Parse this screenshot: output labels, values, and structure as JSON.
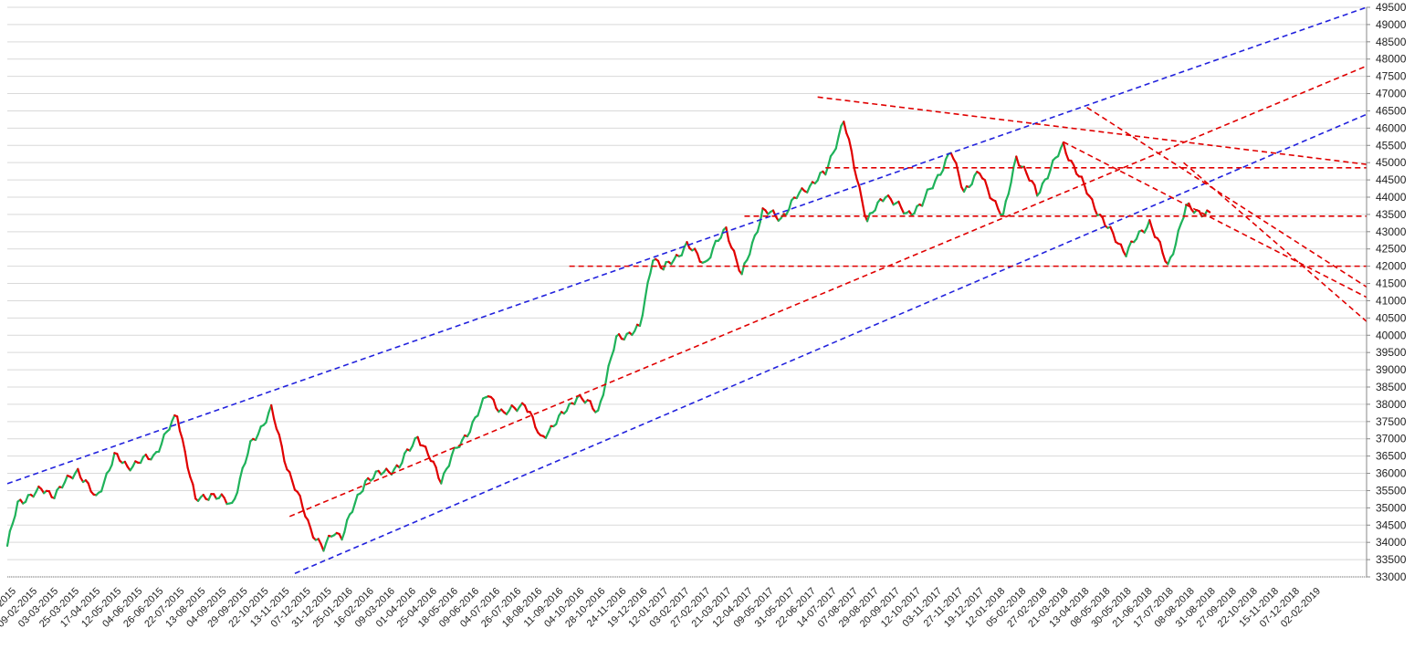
{
  "chart_data": {
    "type": "line",
    "style": "candlestick-like price line, green rising segments and red falling segments",
    "title": "",
    "xlabel": "",
    "ylabel": "",
    "grid": true,
    "legend": "none",
    "y_axis_position": "right",
    "ylim": [
      33000,
      49500
    ],
    "y_ticks": [
      33000,
      33500,
      34000,
      34500,
      35000,
      35500,
      36000,
      36500,
      37000,
      37500,
      38000,
      38500,
      39000,
      39500,
      40000,
      40500,
      41000,
      41500,
      42000,
      42500,
      43000,
      43500,
      44000,
      44500,
      45000,
      45500,
      46000,
      46500,
      47000,
      47500,
      48000,
      48500,
      49000,
      49500
    ],
    "x_tick_labels": [
      "-2015",
      "09-02-2015",
      "03-03-2015",
      "25-03-2015",
      "17-04-2015",
      "12-05-2015",
      "04-06-2015",
      "26-06-2015",
      "22-07-2015",
      "13-08-2015",
      "04-09-2015",
      "29-09-2015",
      "22-10-2015",
      "13-11-2015",
      "07-12-2015",
      "31-12-2015",
      "25-01-2016",
      "16-02-2016",
      "09-03-2016",
      "01-04-2016",
      "25-04-2016",
      "18-05-2016",
      "09-06-2016",
      "04-07-2016",
      "26-07-2016",
      "18-08-2016",
      "11-09-2016",
      "04-10-2016",
      "28-10-2016",
      "24-11-2016",
      "19-12-2016",
      "12-01-2017",
      "03-02-2017",
      "27-02-2017",
      "21-03-2017",
      "12-04-2017",
      "09-05-2017",
      "31-05-2017",
      "22-06-2017",
      "14-07-2017",
      "07-08-2017",
      "29-08-2017",
      "20-09-2017",
      "12-10-2017",
      "03-11-2017",
      "27-11-2017",
      "19-12-2017",
      "12-01-2018",
      "05-02-2018",
      "27-02-2018",
      "21-03-2018",
      "13-04-2018",
      "08-05-2018",
      "30-05-2018",
      "21-06-2018",
      "17-07-2018",
      "08-08-2018",
      "31-08-2018",
      "27-09-2018",
      "22-10-2018",
      "15-11-2018",
      "07-12-2018",
      "02-02-2019"
    ],
    "series": [
      {
        "role": "price",
        "x_index": [
          0,
          1,
          2,
          3,
          4,
          5,
          6,
          7,
          8,
          9,
          10,
          11,
          12,
          13,
          14,
          15,
          16,
          17,
          18,
          19,
          20,
          21,
          22,
          23,
          24,
          25,
          26,
          27,
          28,
          29,
          30,
          31,
          32,
          33,
          34,
          35,
          36,
          37,
          38,
          39,
          40,
          41,
          42,
          43,
          44,
          45,
          46,
          47,
          48,
          49,
          50,
          51,
          52,
          53,
          54,
          55,
          56,
          57,
          58,
          59,
          60,
          61,
          62,
          63,
          64,
          65,
          66,
          67,
          68,
          69,
          70,
          71,
          72,
          73,
          74,
          75,
          76,
          77,
          78,
          79,
          80,
          81,
          82,
          83,
          84,
          85,
          86,
          87,
          88,
          89,
          90,
          91,
          92,
          93,
          94,
          95,
          96,
          97,
          98,
          99,
          100,
          101,
          102,
          103,
          104,
          105,
          106,
          107,
          108,
          109,
          110,
          111,
          112,
          113,
          114,
          115,
          116,
          117,
          118,
          119,
          120,
          121,
          122,
          123,
          124,
          125,
          126,
          127,
          128,
          129,
          130,
          131,
          132,
          133,
          134,
          135,
          136,
          137,
          138,
          139,
          140,
          141,
          142,
          143,
          144,
          145,
          146,
          147,
          148,
          149,
          150,
          151,
          152,
          153,
          154,
          155,
          156,
          157,
          158,
          159,
          160,
          161,
          162,
          163,
          164,
          165,
          166,
          167,
          168,
          169,
          170,
          171,
          172,
          173,
          174,
          175,
          176,
          177,
          178,
          179,
          180,
          181,
          182,
          183,
          184,
          185,
          186,
          187,
          188,
          189,
          190,
          191,
          192,
          193,
          194,
          195,
          196,
          197,
          198,
          199,
          200,
          201,
          202,
          203,
          204,
          205,
          206,
          207,
          208,
          209,
          210,
          211,
          212,
          213,
          214,
          215,
          216,
          217,
          218,
          219,
          220,
          221,
          222,
          223,
          224,
          225,
          226,
          227,
          228,
          229,
          230,
          231,
          232,
          233,
          234,
          235,
          236,
          237,
          238,
          239,
          240,
          241,
          242,
          243,
          244,
          245,
          246,
          247,
          248,
          249,
          250,
          251,
          252,
          253,
          254,
          255,
          256,
          257,
          258,
          259,
          260,
          261,
          262,
          263,
          264,
          265,
          266,
          267,
          268,
          269,
          270,
          271,
          272,
          273,
          274,
          275,
          276,
          277,
          278,
          279,
          280,
          281,
          282,
          283,
          284,
          285,
          286,
          287,
          288,
          289,
          290,
          291,
          292,
          293,
          294,
          295,
          296,
          297,
          298,
          299,
          300,
          301,
          302,
          303,
          304,
          305,
          306,
          307,
          308,
          309,
          310,
          311,
          312,
          313,
          314,
          315,
          316,
          317,
          318,
          319,
          320,
          321,
          322,
          323,
          324,
          325,
          326,
          327,
          328,
          329,
          330,
          331,
          332,
          333,
          334,
          335,
          336,
          337,
          338,
          339,
          340,
          341,
          342,
          343,
          344,
          345,
          346,
          347,
          348,
          349,
          350,
          351,
          352,
          353,
          354,
          355,
          356,
          357,
          358,
          359,
          360,
          361,
          362,
          363,
          364,
          365,
          366,
          367,
          368,
          369,
          370,
          371,
          372,
          373,
          374,
          375,
          376,
          377,
          378,
          379,
          380,
          381,
          382,
          383,
          384,
          385,
          386,
          387,
          388,
          389,
          390,
          391,
          392,
          393,
          394,
          395,
          396,
          397,
          398,
          399,
          400,
          401,
          402,
          403,
          404,
          405,
          406,
          407,
          408,
          409,
          410,
          411,
          412,
          413,
          414,
          415,
          416,
          417,
          418,
          419,
          420,
          421,
          422,
          423,
          424,
          425,
          426,
          427,
          428,
          429,
          430,
          431,
          432,
          433,
          434,
          435,
          436,
          437,
          438,
          439,
          440,
          441,
          442,
          443,
          444,
          445,
          446,
          447,
          448,
          449,
          450,
          451,
          452,
          453,
          454,
          455,
          456,
          457,
          458,
          459,
          460,
          461,
          462,
          463,
          464,
          465,
          466,
          467,
          468,
          469,
          470,
          471,
          472,
          473,
          474,
          475,
          476,
          477,
          478,
          479,
          480,
          481,
          482,
          483,
          484,
          485,
          486,
          487,
          488,
          489,
          490,
          491,
          492,
          493,
          494,
          495,
          496,
          497,
          498,
          499,
          500,
          501,
          502,
          503,
          504,
          505,
          506,
          507,
          508,
          509,
          510,
          511,
          512,
          513,
          514,
          515,
          516,
          517,
          518,
          519,
          520
        ],
        "anchors_x": [
          0,
          4,
          8,
          13,
          18,
          27,
          34,
          41,
          46,
          56,
          65,
          72,
          78,
          86,
          93,
          101,
          107,
          116,
          121,
          125,
          128,
          137,
          143,
          150,
          157,
          166,
          170,
          174,
          184,
          190,
          198,
          204,
          212,
          218,
          226,
          233,
          242,
          247,
          251,
          260,
          267,
          275,
          281,
          289,
          296,
          303,
          313,
          320,
          329,
          336,
          344,
          350,
          361,
          366,
          372,
          381,
          386,
          394,
          404,
          412,
          420,
          428,
          437,
          444,
          451,
          460,
          468,
          476,
          482,
          488,
          492,
          501,
          509,
          513,
          520
        ],
        "anchors_y": [
          33900,
          35100,
          35350,
          35500,
          35400,
          36100,
          35250,
          36500,
          36200,
          36500,
          37700,
          35200,
          35400,
          35100,
          36800,
          37850,
          36200,
          34400,
          33800,
          34300,
          34200,
          35800,
          36000,
          36200,
          37100,
          35800,
          36500,
          36900,
          38300,
          37700,
          38050,
          37000,
          37650,
          38250,
          37800,
          39900,
          40200,
          42300,
          41900,
          42600,
          42100,
          43100,
          41700,
          43600,
          43400,
          44100,
          44700,
          46200,
          43300,
          44100,
          43500,
          43800,
          45300,
          44200,
          44700,
          43400,
          45200,
          44100,
          45500,
          44300,
          43200,
          42400,
          43300,
          42000,
          43700,
          43500,
          43500,
          43500,
          43500,
          43500,
          43500,
          43500,
          43500,
          43500,
          43500
        ]
      }
    ],
    "price_end_index": 460,
    "trendlines": [
      {
        "kind": "channel-upper",
        "color": "#2222dd",
        "style": "dashed",
        "from": [
          0,
          35700
        ],
        "to": [
          520,
          49500
        ]
      },
      {
        "kind": "channel-lower",
        "color": "#2222dd",
        "style": "dashed",
        "from": [
          110,
          33100
        ],
        "to": [
          520,
          46400
        ]
      },
      {
        "kind": "trend",
        "color": "#e00000",
        "style": "dashed",
        "from": [
          108,
          34750
        ],
        "to": [
          520,
          47800
        ]
      },
      {
        "kind": "resistance-falling",
        "color": "#e00000",
        "style": "dashed",
        "from": [
          310,
          46900
        ],
        "to": [
          520,
          44950
        ]
      },
      {
        "kind": "channel-falling-a",
        "color": "#e00000",
        "style": "dashed",
        "from": [
          404,
          45600
        ],
        "to": [
          520,
          41100
        ]
      },
      {
        "kind": "channel-falling-b",
        "color": "#e00000",
        "style": "dashed",
        "from": [
          413,
          46600
        ],
        "to": [
          520,
          41400
        ]
      },
      {
        "kind": "channel-falling-c",
        "color": "#e00000",
        "style": "dashed",
        "from": [
          450,
          45000
        ],
        "to": [
          520,
          40400
        ]
      },
      {
        "kind": "horizontal",
        "color": "#e00000",
        "style": "dashed",
        "from": [
          215,
          42000
        ],
        "to": [
          520,
          42000
        ]
      },
      {
        "kind": "horizontal",
        "color": "#e00000",
        "style": "dashed",
        "from": [
          282,
          43450
        ],
        "to": [
          520,
          43450
        ]
      },
      {
        "kind": "horizontal",
        "color": "#e00000",
        "style": "dashed",
        "from": [
          313,
          44850
        ],
        "to": [
          520,
          44850
        ]
      }
    ],
    "colors": {
      "up": "#1fb25a",
      "down": "#e00000",
      "blue_line": "#2222dd",
      "red_line": "#e00000",
      "grid": "#d9d9d9"
    }
  }
}
